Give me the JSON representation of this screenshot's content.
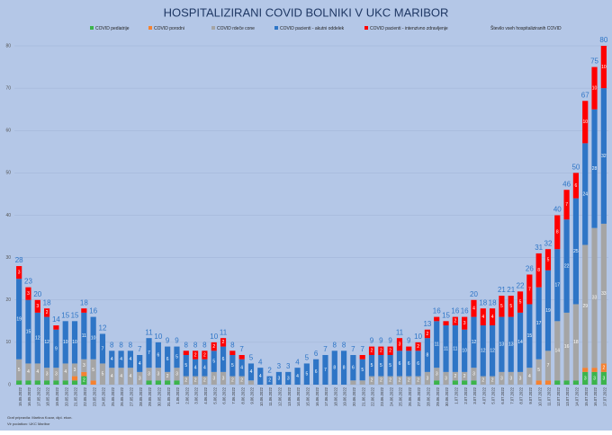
{
  "chart_data": {
    "type": "stacked_bar",
    "title": "HOSPITALIZIRANI COVID BOLNIKI V UKC MARIBOR",
    "footnotes": [
      "Graf pripravila: Martina Kozar, dipl. ekon.",
      "Vir podatkov: UKC Maribor"
    ],
    "categories": [
      "15.05.2022",
      "16.05.2022",
      "17.05.2022",
      "18.05.2022",
      "19.05.2022",
      "20.05.2022",
      "21.05.2022",
      "22.05.2022",
      "23.05.2022",
      "24.05.2022",
      "25.05.2022",
      "26.05.2022",
      "27.05.2022",
      "28.05.2022",
      "29.05.2022",
      "30.05.2022",
      "31.05.2022",
      "1.06.2022",
      "2.06.2022",
      "3.06.2022",
      "4.06.2022",
      "5.06.2022",
      "6.06.2022",
      "7.06.2022",
      "8.06.2022",
      "9.06.2022",
      "10.06.2022",
      "11.06.2022",
      "12.06.2022",
      "13.06.2022",
      "14.06.2022",
      "15.06.2022",
      "16.06.2022",
      "17.06.2022",
      "18.06.2022",
      "19.06.2022",
      "20.06.2022",
      "21.06.2022",
      "22.06.2022",
      "23.06.2022",
      "24.06.2022",
      "25.06.2022",
      "26.06.2022",
      "27.06.2022",
      "28.06.2022",
      "29.06.2022",
      "30.06.2022",
      "1.07.2022",
      "2.07.2022",
      "3.07.2022",
      "4.07.2022",
      "5.07.2022",
      "6.07.2022",
      "7.07.2022",
      "8.07.2022",
      "9.07.2022",
      "10.07.2022",
      "11.07.2022",
      "12.07.2022",
      "13.07.2022",
      "14.07.2022",
      "15.07.2022",
      "16.07.2022",
      "17.07.2022"
    ],
    "series": [
      {
        "name": "COVID pediatrije",
        "color": "#3cb44b",
        "values": [
          1,
          1,
          1,
          1,
          1,
          1,
          1,
          2,
          0,
          0,
          0,
          0,
          0,
          0,
          1,
          1,
          1,
          1,
          0,
          0,
          0,
          0,
          0,
          0,
          0,
          0,
          0,
          0,
          0,
          0,
          0,
          0,
          0,
          0,
          0,
          0,
          0,
          0,
          0,
          0,
          0,
          0,
          0,
          0,
          0,
          1,
          0,
          1,
          1,
          1,
          0,
          0,
          0,
          0,
          0,
          0,
          0,
          0,
          1,
          1,
          1,
          3,
          3,
          3
        ]
      },
      {
        "name": "COVID porodni",
        "color": "#f58231",
        "values": [
          0,
          0,
          0,
          0,
          0,
          0,
          1,
          1,
          1,
          0,
          0,
          0,
          0,
          0,
          0,
          0,
          0,
          0,
          0,
          0,
          0,
          0,
          0,
          0,
          0,
          0,
          0,
          0,
          0,
          0,
          0,
          0,
          0,
          0,
          0,
          0,
          0,
          0,
          0,
          0,
          0,
          0,
          0,
          0,
          0,
          0,
          0,
          0,
          0,
          0,
          0,
          0,
          0,
          0,
          0,
          0,
          1,
          1,
          0,
          0,
          0,
          1,
          1,
          2
        ]
      },
      {
        "name": "COVID rdeče cone",
        "color": "#a5a5a5",
        "values": [
          5,
          4,
          4,
          3,
          3,
          4,
          3,
          3,
          5,
          5,
          4,
          4,
          4,
          3,
          3,
          3,
          2,
          3,
          2,
          2,
          2,
          3,
          3,
          2,
          2,
          1,
          0,
          0,
          0,
          0,
          0,
          0,
          0,
          0,
          0,
          0,
          1,
          1,
          2,
          2,
          2,
          2,
          2,
          2,
          3,
          3,
          3,
          2,
          2,
          3,
          2,
          2,
          3,
          3,
          3,
          4,
          5,
          7,
          14,
          16,
          18,
          29,
          33,
          33
        ]
      },
      {
        "name": "COVID pacienti - akutni oddelek",
        "color": "#2e75c6",
        "values": [
          19,
          15,
          12,
          12,
          9,
          10,
          10,
          11,
          10,
          7,
          4,
          4,
          4,
          4,
          7,
          6,
          6,
          5,
          5,
          4,
          4,
          5,
          6,
          5,
          4,
          4,
          4,
          2,
          3,
          3,
          4,
          5,
          6,
          7,
          8,
          8,
          6,
          5,
          5,
          5,
          5,
          6,
          6,
          6,
          8,
          11,
          11,
          11,
          10,
          12,
          12,
          12,
          13,
          13,
          14,
          15,
          17,
          19,
          17,
          22,
          25,
          24,
          28,
          32
        ]
      },
      {
        "name": "COVID pacienti - intenzivno zdravljenje",
        "color": "#ff0000",
        "values": [
          3,
          3,
          3,
          2,
          1,
          0,
          0,
          1,
          0,
          0,
          0,
          0,
          0,
          0,
          0,
          0,
          0,
          0,
          1,
          2,
          2,
          2,
          2,
          1,
          1,
          0,
          0,
          0,
          0,
          0,
          0,
          0,
          0,
          0,
          0,
          0,
          0,
          1,
          2,
          2,
          2,
          3,
          1,
          2,
          2,
          1,
          1,
          2,
          3,
          4,
          4,
          4,
          5,
          5,
          5,
          7,
          8,
          5,
          8,
          7,
          6,
          10,
          10,
          10
        ]
      }
    ],
    "totals": {
      "name": "Število vseh hospitaliziranih COVID",
      "color": "#2e75c6",
      "values": [
        28,
        23,
        20,
        18,
        14,
        15,
        15,
        18,
        16,
        12,
        8,
        8,
        8,
        7,
        11,
        10,
        9,
        9,
        8,
        8,
        8,
        10,
        11,
        8,
        7,
        5,
        4,
        2,
        3,
        3,
        4,
        5,
        6,
        7,
        8,
        8,
        7,
        7,
        9,
        9,
        9,
        11,
        9,
        10,
        13,
        16,
        15,
        16,
        16,
        20,
        18,
        18,
        21,
        21,
        22,
        26,
        31,
        32,
        40,
        46,
        50,
        67,
        75,
        80
      ]
    },
    "ylim": [
      0,
      80
    ],
    "yticks": [
      0,
      10,
      20,
      30,
      40,
      50,
      60,
      70,
      80
    ],
    "grid": true,
    "legend": "top"
  }
}
